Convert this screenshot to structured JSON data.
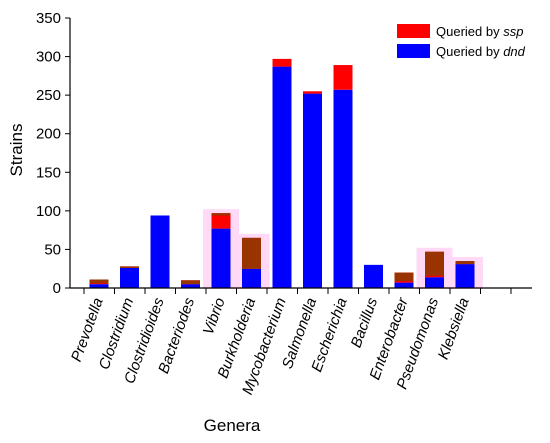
{
  "chart_data": {
    "type": "bar",
    "stacked": true,
    "categories": [
      "Prevotella",
      "Clostridium",
      "Clostridioides",
      "Bacteriodes",
      "Vibrio",
      "Burkholderia",
      "Mycobacterium",
      "Salmonella",
      "Escherichia",
      "Bacillus",
      "Enterobacter",
      "Pseudomonas",
      "Klebsiella"
    ],
    "series": [
      {
        "name_prefix": "Queried by ",
        "name_italic": "dnd",
        "color": "#0000ff",
        "values": [
          5,
          26,
          94,
          5,
          77,
          25,
          287,
          252,
          257,
          30,
          7,
          14,
          31
        ]
      },
      {
        "name_prefix": "Queried by ",
        "name_italic": "ssp",
        "color": "#ff0000",
        "values": [
          6,
          2,
          0,
          5,
          20,
          40,
          10,
          3,
          32,
          0,
          13,
          33,
          4
        ]
      }
    ],
    "overlap_color": "#993300",
    "overlap_values": [
      5,
      2,
      0,
      5,
      3,
      40,
      0,
      0,
      0,
      0,
      11,
      31,
      4
    ],
    "highlight_categories": [
      "Vibrio",
      "Burkholderia",
      "Pseudomonas",
      "Klebsiella"
    ],
    "highlight_color": "#ffd9f5",
    "xlabel": "Genera",
    "ylabel": "Strains",
    "ylim": [
      0,
      350
    ],
    "yticks": [
      0,
      50,
      100,
      150,
      200,
      250,
      300,
      350
    ],
    "legend_position": "top-right",
    "grid": false
  }
}
